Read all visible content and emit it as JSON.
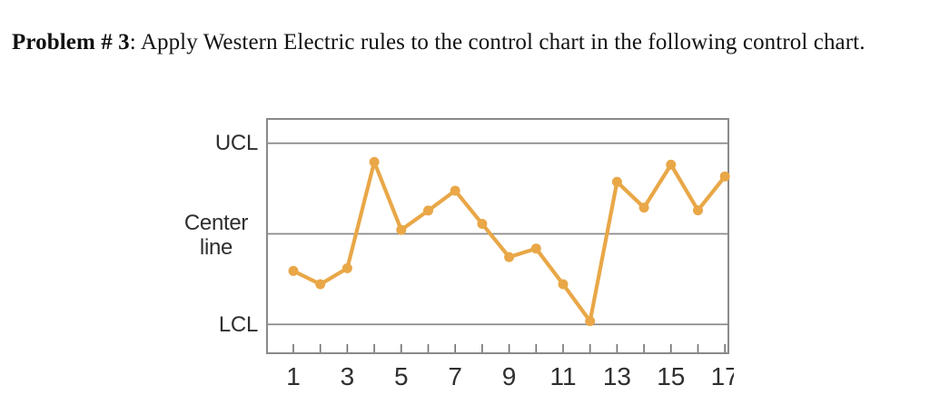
{
  "title": {
    "bold": "Problem # 3",
    "rest": ": Apply Western Electric rules to the control chart in the following control chart."
  },
  "chart_data": {
    "type": "line",
    "title": "",
    "xlabel": "",
    "ylabel": "",
    "x": [
      1,
      2,
      3,
      4,
      5,
      6,
      7,
      8,
      9,
      10,
      11,
      12,
      13,
      14,
      15,
      16,
      17
    ],
    "values": [
      -1.23,
      -1.67,
      -1.14,
      2.38,
      0.13,
      0.77,
      1.43,
      0.33,
      -0.77,
      -0.49,
      -1.67,
      -2.89,
      1.72,
      0.87,
      2.29,
      0.78,
      1.9
    ],
    "value_unit": "sigma-from-center-line",
    "control_limits": {
      "ucl": 3,
      "center": 0,
      "lcl": -3
    },
    "ylabels": [
      "UCL",
      "Center line",
      "LCL"
    ],
    "xticklabels": [
      "1",
      "3",
      "5",
      "7",
      "9",
      "11",
      "13",
      "15",
      "17"
    ],
    "ylim": [
      -3.98,
      3.83
    ],
    "grid": "control-lines-only",
    "legend": "none",
    "marker": "filled-circle",
    "line_color": "#E9A747",
    "axis_color": "#8A8A8A",
    "tick_color": "#6F6F6F",
    "text_color": "#2F2F2F"
  }
}
